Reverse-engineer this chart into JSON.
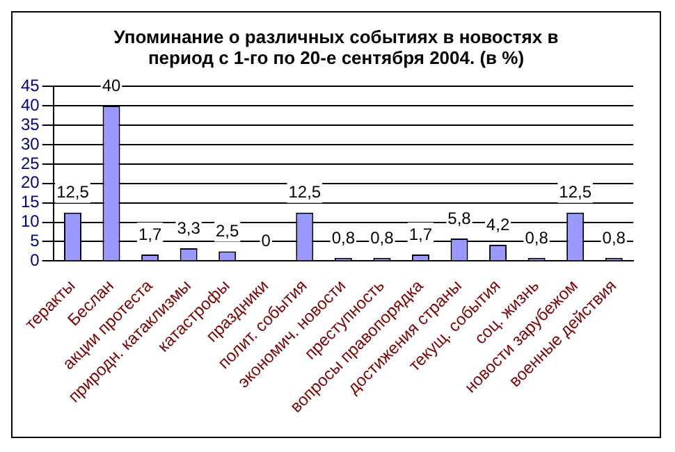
{
  "chart_data": {
    "type": "bar",
    "title": "Упоминание о различных событиях в новостях в период с 1-го по 20-е сентября 2004. (в %)",
    "categories": [
      "теракты",
      "Беслан",
      "акции протеста",
      "природн. катаклизмы",
      "катастрофы",
      "праздники",
      "полит. события",
      "экономич. новости",
      "преступность",
      "вопросы правопорядка",
      "достижения страны",
      "текущ. события",
      "соц. жизнь",
      "новости зарубежом",
      "военные действия"
    ],
    "values": [
      12.5,
      40,
      1.7,
      3.3,
      2.5,
      0,
      12.5,
      0.8,
      0.8,
      1.7,
      5.8,
      4.2,
      0.8,
      12.5,
      0.8
    ],
    "value_labels": [
      "12,5",
      "40",
      "1,7",
      "3,3",
      "2,5",
      "0",
      "12,5",
      "0,8",
      "0,8",
      "1,7",
      "5,8",
      "4,2",
      "0,8",
      "12,5",
      "0,8"
    ],
    "color": "#9999ff",
    "ylim": [
      0,
      45
    ],
    "yticks": [
      0,
      5,
      10,
      15,
      20,
      25,
      30,
      35,
      40,
      45
    ],
    "grid": "y",
    "legend": false
  }
}
